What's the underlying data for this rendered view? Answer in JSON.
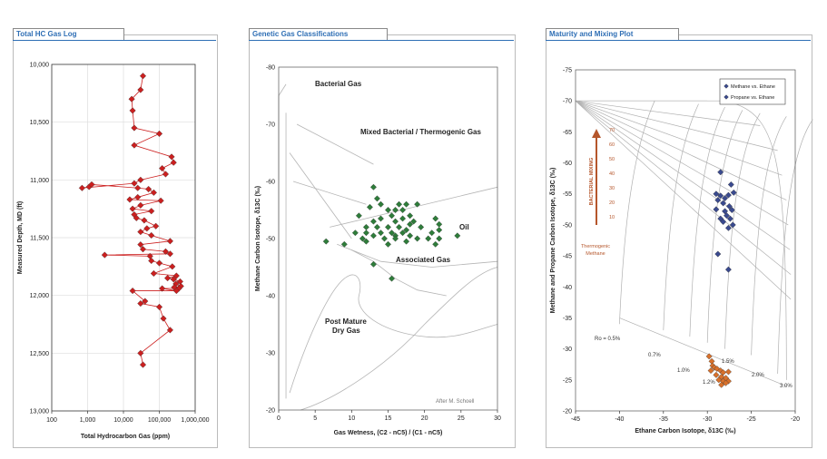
{
  "panels": {
    "p1": {
      "title": "Total HC Gas Log"
    },
    "p2": {
      "title": "Genetic Gas Classifications"
    },
    "p3": {
      "title": "Maturity and Mixing Plot"
    }
  },
  "colors": {
    "tab_title": "#2f6fb5",
    "red_marker": "#cc1f1f",
    "green_marker": "#2e7d3a",
    "blue_marker": "#3a4a8f",
    "orange_marker": "#d9712b",
    "bacterial_arrow": "#b5562b"
  },
  "chart_data": [
    {
      "type": "scatter",
      "title": "Total HC Gas Log",
      "xlabel": "Total Hydrocarbon Gas (ppm)",
      "ylabel": "Measured Depth, MD (ft)",
      "x_scale": "log",
      "xlim": [
        100,
        1000000
      ],
      "ylim": [
        10000,
        13000
      ],
      "y_inverted": true,
      "x_ticks": [
        "100",
        "1,000",
        "10,000",
        "100,000",
        "1,000,000"
      ],
      "y_ticks": [
        "10,000",
        "10,500",
        "11,000",
        "11,500",
        "12,000",
        "12,500",
        "13,000"
      ],
      "grid": true,
      "connected_line": true,
      "series": [
        {
          "points": [
            [
              35000,
              10100
            ],
            [
              30000,
              10220
            ],
            [
              17000,
              10300
            ],
            [
              18000,
              10400
            ],
            [
              20000,
              10550
            ],
            [
              100000,
              10600
            ],
            [
              20000,
              10700
            ],
            [
              220000,
              10800
            ],
            [
              250000,
              10850
            ],
            [
              120000,
              10900
            ],
            [
              150000,
              10950
            ],
            [
              30000,
              11000
            ],
            [
              20000,
              11030
            ],
            [
              700,
              11070
            ],
            [
              1100,
              11060
            ],
            [
              1300,
              11040
            ],
            [
              25000,
              11070
            ],
            [
              50000,
              11080
            ],
            [
              70000,
              11110
            ],
            [
              25000,
              11150
            ],
            [
              15000,
              11170
            ],
            [
              110000,
              11180
            ],
            [
              30000,
              11220
            ],
            [
              18000,
              11250
            ],
            [
              60000,
              11270
            ],
            [
              20000,
              11300
            ],
            [
              23000,
              11330
            ],
            [
              38000,
              11350
            ],
            [
              80000,
              11400
            ],
            [
              45000,
              11420
            ],
            [
              30000,
              11450
            ],
            [
              60000,
              11480
            ],
            [
              200000,
              11530
            ],
            [
              30000,
              11560
            ],
            [
              35000,
              11600
            ],
            [
              150000,
              11620
            ],
            [
              200000,
              11640
            ],
            [
              3000,
              11650
            ],
            [
              55000,
              11660
            ],
            [
              60000,
              11700
            ],
            [
              100000,
              11720
            ],
            [
              230000,
              11750
            ],
            [
              70000,
              11810
            ],
            [
              300000,
              11830
            ],
            [
              170000,
              11850
            ],
            [
              250000,
              11860
            ],
            [
              380000,
              11880
            ],
            [
              290000,
              11900
            ],
            [
              400000,
              11920
            ],
            [
              260000,
              11930
            ],
            [
              350000,
              11940
            ],
            [
              120000,
              11940
            ],
            [
              300000,
              11960
            ],
            [
              18000,
              11960
            ],
            [
              40000,
              12050
            ],
            [
              30000,
              12070
            ],
            [
              100000,
              12100
            ],
            [
              130000,
              12200
            ],
            [
              200000,
              12300
            ],
            [
              30000,
              12500
            ],
            [
              35000,
              12600
            ]
          ]
        }
      ]
    },
    {
      "type": "scatter",
      "title": "Genetic Gas Classifications",
      "xlabel": "Gas Wetness, (C2 - nC5) / (C1 - nC5)",
      "ylabel": "Methane Carbon Isotope, δ13C (‰)",
      "xlim": [
        0,
        30
      ],
      "ylim": [
        -20,
        -80
      ],
      "x_ticks": [
        "0",
        "5",
        "10",
        "15",
        "20",
        "25",
        "30"
      ],
      "y_ticks": [
        "-80",
        "-70",
        "-60",
        "-50",
        "-40",
        "-30",
        "-20"
      ],
      "annotations": [
        "Bacterial Gas",
        "Mixed Bacterial / Thermogenic Gas",
        "Oil",
        "Associated Gas",
        "Post Mature",
        "Dry Gas",
        "After M. Schoell"
      ],
      "series": [
        {
          "points": [
            [
              13,
              -59
            ],
            [
              13.5,
              -57
            ],
            [
              12.5,
              -55.5
            ],
            [
              14,
              -56
            ],
            [
              16.5,
              -56
            ],
            [
              17.5,
              -56
            ],
            [
              19,
              -56
            ],
            [
              15,
              -55
            ],
            [
              16,
              -55
            ],
            [
              17,
              -55
            ],
            [
              18,
              -54
            ],
            [
              15.5,
              -54
            ],
            [
              11,
              -54
            ],
            [
              13,
              -53
            ],
            [
              14,
              -53.5
            ],
            [
              16,
              -53
            ],
            [
              17,
              -53.5
            ],
            [
              18.5,
              -53
            ],
            [
              21.5,
              -53.5
            ],
            [
              22,
              -52.5
            ],
            [
              12,
              -52
            ],
            [
              13.5,
              -52
            ],
            [
              15,
              -52
            ],
            [
              16.5,
              -52
            ],
            [
              17.5,
              -51.5
            ],
            [
              18,
              -52.5
            ],
            [
              19.5,
              -52
            ],
            [
              10.5,
              -51
            ],
            [
              12,
              -51
            ],
            [
              14,
              -51
            ],
            [
              15.5,
              -51
            ],
            [
              16,
              -50.5
            ],
            [
              17,
              -51
            ],
            [
              18,
              -50.5
            ],
            [
              21,
              -51
            ],
            [
              22,
              -51.5
            ],
            [
              11.5,
              -50
            ],
            [
              13,
              -50.5
            ],
            [
              14.5,
              -50
            ],
            [
              16,
              -50
            ],
            [
              17.5,
              -49.5
            ],
            [
              19,
              -50
            ],
            [
              20.5,
              -50
            ],
            [
              22,
              -50
            ],
            [
              24.5,
              -50.5
            ],
            [
              6.5,
              -49.5
            ],
            [
              12,
              -49.5
            ],
            [
              15,
              -49
            ],
            [
              9,
              -49
            ],
            [
              21.5,
              -49
            ],
            [
              13,
              -45.5
            ],
            [
              15.5,
              -43
            ]
          ]
        }
      ]
    },
    {
      "type": "scatter",
      "title": "Maturity and Mixing Plot",
      "xlabel": "Ethane Carbon Isotope, δ13C (‰)",
      "ylabel": "Methane and Propane Carbon Isotope, δ13C (‰)",
      "xlim": [
        -45,
        -20
      ],
      "ylim": [
        -20,
        -75
      ],
      "x_ticks": [
        "-45",
        "-40",
        "-35",
        "-30",
        "-25",
        "-20"
      ],
      "y_ticks": [
        "-75",
        "-70",
        "-65",
        "-60",
        "-55",
        "-50",
        "-45",
        "-40",
        "-35",
        "-30",
        "-25",
        "-20"
      ],
      "legend": "top-right",
      "annotations": [
        "BACTERIAL MIXING",
        "Thermogenic Methane",
        "Ro = 0.5%",
        "0.7%",
        "1.0%",
        "1.2%",
        "1.5%",
        "2.0%",
        "3.0%",
        "70",
        "60",
        "50",
        "40",
        "30",
        "20",
        "10"
      ],
      "series": [
        {
          "name": "Methane vs. Ethane",
          "points": [
            [
              -28.5,
              -58.5
            ],
            [
              -27.3,
              -56.5
            ],
            [
              -29,
              -55
            ],
            [
              -28.5,
              -54.7
            ],
            [
              -28,
              -54.3
            ],
            [
              -27.6,
              -54.8
            ],
            [
              -27,
              -55.2
            ],
            [
              -28.8,
              -54
            ],
            [
              -28.2,
              -53.5
            ],
            [
              -27.5,
              -53
            ],
            [
              -29,
              -52.5
            ],
            [
              -28,
              -52.2
            ],
            [
              -27.2,
              -52.4
            ],
            [
              -27.8,
              -51.5
            ],
            [
              -28.5,
              -51
            ],
            [
              -27.4,
              -51
            ],
            [
              -28.2,
              -50.5
            ],
            [
              -27.1,
              -50
            ],
            [
              -27.6,
              -49.5
            ],
            [
              -28.8,
              -45.3
            ],
            [
              -27.6,
              -42.8
            ]
          ]
        },
        {
          "name": "Propane vs. Ethane",
          "points": [
            [
              -29.8,
              -28.8
            ],
            [
              -29.5,
              -28
            ],
            [
              -29.4,
              -27.3
            ],
            [
              -29.2,
              -27
            ],
            [
              -29.6,
              -26.5
            ],
            [
              -28.9,
              -26.8
            ],
            [
              -28.5,
              -26.5
            ],
            [
              -28.2,
              -26.2
            ],
            [
              -27.6,
              -26.3
            ],
            [
              -29,
              -25.8
            ],
            [
              -28.4,
              -25.5
            ],
            [
              -27.9,
              -25.3
            ],
            [
              -28.7,
              -25
            ],
            [
              -28.2,
              -24.8
            ],
            [
              -27.6,
              -24.8
            ],
            [
              -28.4,
              -24.2
            ],
            [
              -27.9,
              -24.5
            ]
          ]
        }
      ]
    }
  ]
}
